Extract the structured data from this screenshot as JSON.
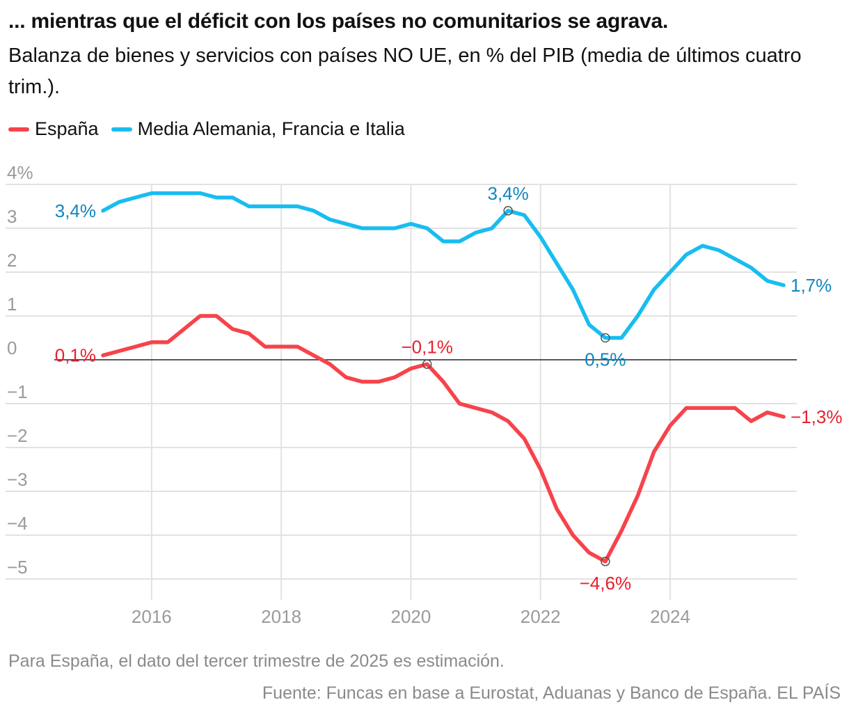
{
  "title": "... mientras que el déficit con los países no comunitarios se agrava.",
  "subtitle": "Balanza de bienes y servicios con países NO UE, en % del PIB (media de últimos cuatro trim.).",
  "legend": [
    {
      "label": "España",
      "color": "#f7434b"
    },
    {
      "label": "Media Alemania, Francia e Italia",
      "color": "#18bdf0"
    }
  ],
  "note": "Para España, el dato del tercer trimestre de 2025 es estimación.",
  "source": "Fuente: Funcas en base a Eurostat, Aduanas y Banco de España. EL PAÍS",
  "chart_data": {
    "type": "line",
    "title": "Balanza de bienes y servicios con países NO UE, en % del PIB (media de últimos cuatro trim.)",
    "xlabel": "",
    "ylabel": "% del PIB",
    "ylim": [
      -5,
      4
    ],
    "xlim": [
      2015.25,
      2025.75
    ],
    "yticks": [
      {
        "value": 4,
        "label": "4%"
      },
      {
        "value": 3,
        "label": "3"
      },
      {
        "value": 2,
        "label": "2"
      },
      {
        "value": 1,
        "label": "1"
      },
      {
        "value": 0,
        "label": "0"
      },
      {
        "value": -1,
        "label": "−1"
      },
      {
        "value": -2,
        "label": "−2"
      },
      {
        "value": -3,
        "label": "−3"
      },
      {
        "value": -4,
        "label": "−4"
      },
      {
        "value": -5,
        "label": "−5"
      }
    ],
    "xticks": [
      {
        "value": 2016,
        "label": "2016"
      },
      {
        "value": 2018,
        "label": "2018"
      },
      {
        "value": 2020,
        "label": "2020"
      },
      {
        "value": 2022,
        "label": "2022"
      },
      {
        "value": 2024,
        "label": "2024"
      }
    ],
    "x": [
      2015.25,
      2015.5,
      2015.75,
      2016.0,
      2016.25,
      2016.5,
      2016.75,
      2017.0,
      2017.25,
      2017.5,
      2017.75,
      2018.0,
      2018.25,
      2018.5,
      2018.75,
      2019.0,
      2019.25,
      2019.5,
      2019.75,
      2020.0,
      2020.25,
      2020.5,
      2020.75,
      2021.0,
      2021.25,
      2021.5,
      2021.75,
      2022.0,
      2022.25,
      2022.5,
      2022.75,
      2023.0,
      2023.25,
      2023.5,
      2023.75,
      2024.0,
      2024.25,
      2024.5,
      2024.75,
      2025.0,
      2025.25,
      2025.5,
      2025.75
    ],
    "series": [
      {
        "name": "España",
        "color": "#f7434b",
        "label_color": "#e8212e",
        "values": [
          0.1,
          0.2,
          0.3,
          0.4,
          0.4,
          0.7,
          1.0,
          1.0,
          0.7,
          0.6,
          0.3,
          0.3,
          0.3,
          0.1,
          -0.1,
          -0.4,
          -0.5,
          -0.5,
          -0.4,
          -0.2,
          -0.1,
          -0.5,
          -1.0,
          -1.1,
          -1.2,
          -1.4,
          -1.8,
          -2.5,
          -3.4,
          -4.0,
          -4.4,
          -4.6,
          -3.9,
          -3.1,
          -2.1,
          -1.5,
          -1.1,
          -1.1,
          -1.1,
          -1.1,
          -1.4,
          -1.2,
          -1.3
        ]
      },
      {
        "name": "Media Alemania, Francia e Italia",
        "color": "#18bdf0",
        "label_color": "#1185c0",
        "values": [
          3.4,
          3.6,
          3.7,
          3.8,
          3.8,
          3.8,
          3.8,
          3.7,
          3.7,
          3.5,
          3.5,
          3.5,
          3.5,
          3.4,
          3.2,
          3.1,
          3.0,
          3.0,
          3.0,
          3.1,
          3.0,
          2.7,
          2.7,
          2.9,
          3.0,
          3.4,
          3.3,
          2.8,
          2.2,
          1.6,
          0.8,
          0.5,
          0.5,
          1.0,
          1.6,
          2.0,
          2.4,
          2.6,
          2.5,
          2.3,
          2.1,
          1.8,
          1.7
        ]
      }
    ],
    "annotations": [
      {
        "series": "España",
        "x": 2015.25,
        "label": "0,1%",
        "position": "left",
        "circle": false
      },
      {
        "series": "España",
        "x": 2020.25,
        "label": "−0,1%",
        "position": "above",
        "circle": true
      },
      {
        "series": "España",
        "x": 2023.0,
        "label": "−4,6%",
        "position": "below",
        "circle": true
      },
      {
        "series": "España",
        "x": 2025.75,
        "label": "−1,3%",
        "position": "right",
        "circle": false
      },
      {
        "series": "Media Alemania, Francia e Italia",
        "x": 2015.25,
        "label": "3,4%",
        "position": "left",
        "circle": false
      },
      {
        "series": "Media Alemania, Francia e Italia",
        "x": 2021.5,
        "label": "3,4%",
        "position": "above",
        "circle": true
      },
      {
        "series": "Media Alemania, Francia e Italia",
        "x": 2023.0,
        "label": "0,5%",
        "position": "below",
        "circle": true
      },
      {
        "series": "Media Alemania, Francia e Italia",
        "x": 2025.75,
        "label": "1,7%",
        "position": "right",
        "circle": false
      }
    ]
  }
}
